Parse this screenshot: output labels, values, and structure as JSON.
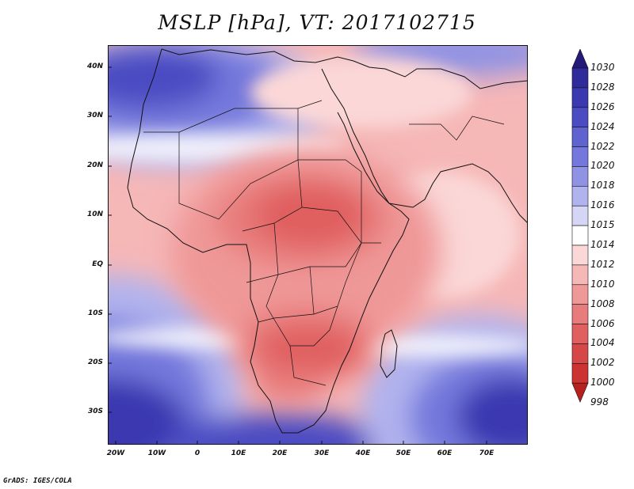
{
  "title": "MSLP [hPa], VT: 2017102715",
  "credit": "GrADS: IGES/COLA",
  "colors": {
    "levels": [
      {
        "label": "1030",
        "color": "#231a7a"
      },
      {
        "label": "1028",
        "color": "#2f2b9a"
      },
      {
        "label": "1026",
        "color": "#3b39b0"
      },
      {
        "label": "1024",
        "color": "#4b4cc2"
      },
      {
        "label": "1022",
        "color": "#5e63d0"
      },
      {
        "label": "1020",
        "color": "#7478dc"
      },
      {
        "label": "1018",
        "color": "#9093e4"
      },
      {
        "label": "1016",
        "color": "#b1b3ee"
      },
      {
        "label": "1015",
        "color": "#d5d6f6"
      },
      {
        "label": "1014",
        "color": "#ffffff"
      },
      {
        "label": "1012",
        "color": "#fbd7d7"
      },
      {
        "label": "1010",
        "color": "#f6b7b7"
      },
      {
        "label": "1008",
        "color": "#ef9898"
      },
      {
        "label": "1006",
        "color": "#e87b7b"
      },
      {
        "label": "1004",
        "color": "#e05f5f"
      },
      {
        "label": "1002",
        "color": "#d64848"
      },
      {
        "label": "1000",
        "color": "#cc3333"
      },
      {
        "label": "998",
        "color": "#b82020"
      }
    ]
  },
  "axes": {
    "lat_labels": [
      "40N",
      "30N",
      "20N",
      "10N",
      "EQ",
      "10S",
      "20S",
      "30S"
    ],
    "lon_labels": [
      "20W",
      "10W",
      "0",
      "10E",
      "20E",
      "30E",
      "40E",
      "50E",
      "60E",
      "70E"
    ]
  }
}
